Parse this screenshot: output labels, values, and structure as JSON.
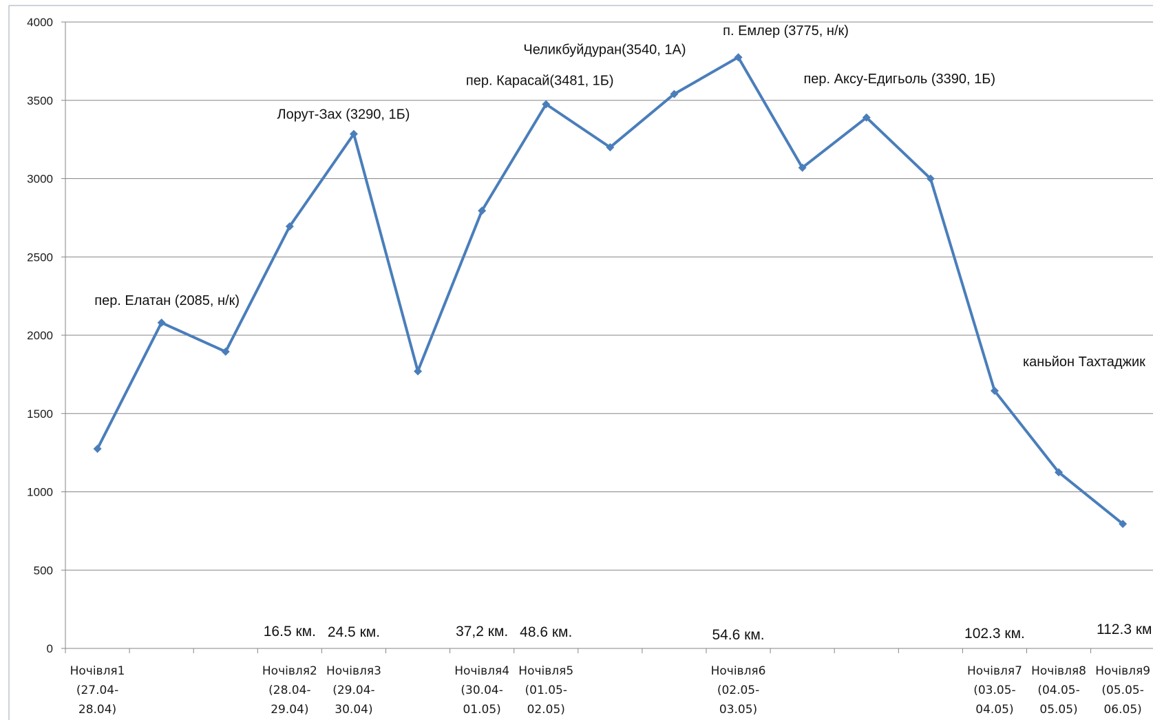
{
  "chart_data": {
    "type": "line",
    "title": "",
    "xlabel": "",
    "ylabel": "",
    "ylim": [
      0,
      4000
    ],
    "yticks": [
      0,
      500,
      1000,
      1500,
      2000,
      2500,
      3000,
      3500,
      4000
    ],
    "grid": "horizontal",
    "legend": "none",
    "colors": {
      "line": "#4a7ebb",
      "grid": "#868686",
      "axis": "#868686"
    },
    "series": [
      {
        "values": [
          1275,
          2080,
          1895,
          2695,
          3285,
          1770,
          2795,
          3475,
          3200,
          3540,
          3775,
          3070,
          3390,
          3000,
          1645,
          1125,
          795
        ]
      }
    ],
    "categories": [
      [
        "Ночівля1",
        "(27.04-",
        "28.04)"
      ],
      [],
      [],
      [
        "Ночівля2",
        "(28.04-",
        "29.04)"
      ],
      [
        "Ночівля3",
        "(29.04-",
        "30.04)"
      ],
      [],
      [
        "Ночівля4",
        "(30.04-",
        "01.05)"
      ],
      [
        "Ночівля5",
        "(01.05-",
        "02.05)"
      ],
      [],
      [],
      [
        "Ночівля6",
        "(02.05-",
        "03.05)"
      ],
      [],
      [],
      [],
      [
        "Ночівля7",
        "(03.05-",
        "04.05)"
      ],
      [
        "Ночівля8",
        "(04.05-",
        "05.05)"
      ],
      [
        "Ночівля9",
        "(05.05-",
        "06.05)"
      ]
    ],
    "annotations": [
      {
        "text": "пер. Елатан (2085, н/к)",
        "point": 1
      },
      {
        "text": "Лорут-Зах (3290, 1Б)",
        "point": 4
      },
      {
        "text": "пер. Карасай(3481, 1Б)",
        "point": 7
      },
      {
        "text": "Челикбуйдуран(3540, 1А)",
        "point": 9
      },
      {
        "text": "п. Емлер (3775, н/к)",
        "point": 10
      },
      {
        "text": "пер. Аксу-Едигьоль (3390, 1Б)",
        "point": 12
      },
      {
        "text": "каньйон Тахтаджик",
        "point": 14
      }
    ],
    "distance_labels": [
      {
        "text": "16.5 км.",
        "category": 3
      },
      {
        "text": "24.5 км.",
        "category": 4
      },
      {
        "text": "37,2 км.",
        "category": 6
      },
      {
        "text": "48.6 км.",
        "category": 7
      },
      {
        "text": "54.6 км.",
        "category": 10
      },
      {
        "text": "102.3 км.",
        "category": 14
      },
      {
        "text": "112.3 км.",
        "category": 16
      }
    ]
  }
}
